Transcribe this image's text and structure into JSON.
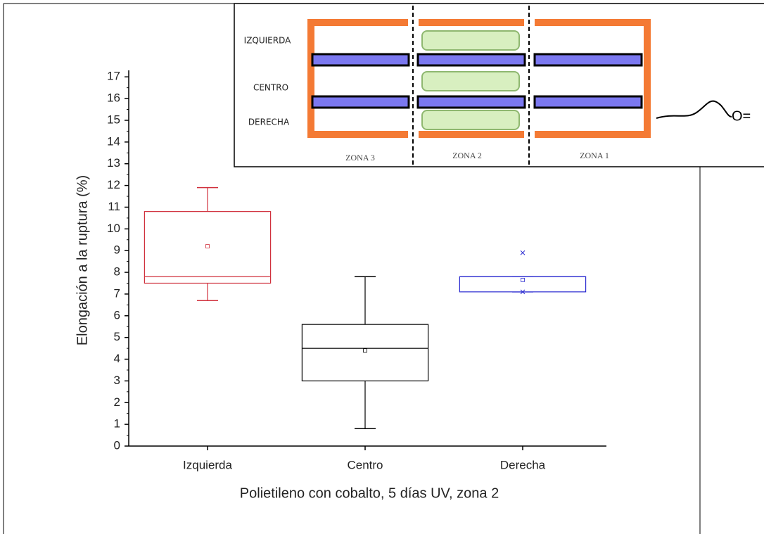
{
  "chart_data": {
    "type": "box",
    "y_label": "Elongación a la ruptura (%)",
    "x_label": "Polietileno con cobalto, 5 días UV, zona 2",
    "categories": [
      "Izquierda",
      "Centro",
      "Derecha"
    ],
    "boxes": [
      {
        "color": "#d0303c",
        "min": 6.7,
        "q1": 7.5,
        "median": 7.8,
        "q3": 10.8,
        "max": 11.9,
        "mean": 9.2,
        "outliers": []
      },
      {
        "color": "#000000",
        "min": 0.8,
        "q1": 3.0,
        "median": 4.5,
        "q3": 5.6,
        "max": 7.8,
        "mean": 4.4,
        "outliers": []
      },
      {
        "color": "#2b2bd0",
        "min": 7.1,
        "q1": 7.1,
        "median": 7.8,
        "q3": 7.8,
        "max": 7.8,
        "mean": 7.65,
        "outliers": [
          8.9,
          7.1
        ]
      }
    ],
    "ylim": [
      0,
      17.3
    ],
    "yticks": [
      0,
      1,
      2,
      3,
      4,
      5,
      6,
      7,
      8,
      9,
      10,
      11,
      12,
      13,
      14,
      15,
      16,
      17
    ]
  },
  "inset": {
    "rows": [
      "IZQUIERDA",
      "CENTRO",
      "DERECHA"
    ],
    "zones": [
      "ZONA 3",
      "ZONA 2",
      "ZONA 1"
    ],
    "symbol": "O="
  }
}
